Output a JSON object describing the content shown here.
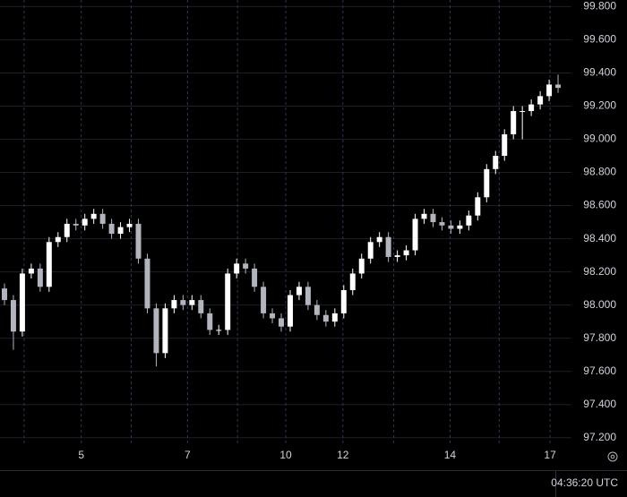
{
  "chart_data": {
    "type": "candlestick",
    "x": [
      0.5,
      1.5,
      2.5,
      3.5,
      4.5,
      5.5,
      6.5,
      7.5,
      8.5,
      9.5,
      10.5,
      11.5,
      12.5,
      13.5,
      14.5,
      15.5,
      16.5,
      17.5,
      18.5,
      19.5,
      20.5,
      21.5,
      22.5,
      23.5,
      24.5,
      25.5,
      26.5,
      27.5,
      28.5,
      29.5,
      30.5,
      31.5,
      32.5,
      33.5,
      34.5,
      35.5,
      36.5,
      37.5,
      38.5,
      39.5,
      40.5,
      41.5,
      42.5,
      43.5,
      44.5,
      45.5,
      46.5,
      47.5,
      48.5,
      49.5,
      50.5,
      51.5,
      52.5,
      53.5,
      54.5,
      55.5,
      56.5,
      57.5,
      58.5,
      59.5,
      60.5,
      61.5,
      62.5
    ],
    "open": [
      98.1,
      98.03,
      97.84,
      98.19,
      98.22,
      98.11,
      98.38,
      98.41,
      98.49,
      98.48,
      98.52,
      98.55,
      98.49,
      98.43,
      98.47,
      98.49,
      98.28,
      97.98,
      97.71,
      97.98,
      98.03,
      98.0,
      98.03,
      97.95,
      97.85,
      97.85,
      98.19,
      98.25,
      98.22,
      98.11,
      97.95,
      97.92,
      97.87,
      98.06,
      98.11,
      98.0,
      97.94,
      97.9,
      97.95,
      98.09,
      98.19,
      98.28,
      98.38,
      98.41,
      98.29,
      98.3,
      98.33,
      98.52,
      98.55,
      98.5,
      98.48,
      98.46,
      98.48,
      98.54,
      98.65,
      98.82,
      98.9,
      99.03,
      99.17,
      99.17,
      99.21,
      99.26,
      99.33
    ],
    "high": [
      98.13,
      98.06,
      98.22,
      98.25,
      98.25,
      98.41,
      98.44,
      98.52,
      98.52,
      98.55,
      98.58,
      98.58,
      98.52,
      98.5,
      98.52,
      98.52,
      98.31,
      98.01,
      98.01,
      98.06,
      98.06,
      98.06,
      98.06,
      97.98,
      97.88,
      98.22,
      98.28,
      98.28,
      98.25,
      98.14,
      97.98,
      97.95,
      98.09,
      98.14,
      98.14,
      98.03,
      97.97,
      97.98,
      98.12,
      98.22,
      98.31,
      98.41,
      98.44,
      98.44,
      98.33,
      98.36,
      98.55,
      98.58,
      98.58,
      98.53,
      98.51,
      98.51,
      98.57,
      98.68,
      98.85,
      98.93,
      99.06,
      99.2,
      99.2,
      99.24,
      99.29,
      99.36,
      99.39
    ],
    "low": [
      98.0,
      97.73,
      97.81,
      98.16,
      98.08,
      98.08,
      98.35,
      98.38,
      98.45,
      98.45,
      98.49,
      98.46,
      98.4,
      98.4,
      98.44,
      98.25,
      97.95,
      97.63,
      97.68,
      97.95,
      97.97,
      97.97,
      97.92,
      97.82,
      97.82,
      97.82,
      98.16,
      98.19,
      98.08,
      97.92,
      97.89,
      97.84,
      97.84,
      98.03,
      97.97,
      97.91,
      97.87,
      97.87,
      97.92,
      98.06,
      98.16,
      98.25,
      98.35,
      98.26,
      98.26,
      98.27,
      98.3,
      98.49,
      98.47,
      98.45,
      98.43,
      98.43,
      98.45,
      98.51,
      98.62,
      98.79,
      98.87,
      99.0,
      99.0,
      99.14,
      99.18,
      99.23,
      99.28
    ],
    "close": [
      98.03,
      97.84,
      98.19,
      98.22,
      98.11,
      98.38,
      98.41,
      98.49,
      98.48,
      98.52,
      98.55,
      98.49,
      98.43,
      98.47,
      98.49,
      98.28,
      97.98,
      97.71,
      97.98,
      98.03,
      98.0,
      98.03,
      97.95,
      97.85,
      97.85,
      98.19,
      98.25,
      98.22,
      98.11,
      97.95,
      97.92,
      97.87,
      98.06,
      98.11,
      98.0,
      97.94,
      97.9,
      97.95,
      98.09,
      98.19,
      98.28,
      98.38,
      98.41,
      98.29,
      98.3,
      98.33,
      98.52,
      98.55,
      98.5,
      98.48,
      98.46,
      98.48,
      98.54,
      98.65,
      98.82,
      98.9,
      99.03,
      99.17,
      99.17,
      99.21,
      99.26,
      99.33,
      99.31
    ],
    "up_color": "#ffffff",
    "down_color": "#b2b5be",
    "xlim": [
      0,
      64
    ],
    "xticks": [
      {
        "value": 2.7,
        "label": null
      },
      {
        "value": 9.1,
        "label": "5"
      },
      {
        "value": 14.7,
        "label": null
      },
      {
        "value": 21,
        "label": "7"
      },
      {
        "value": 26.6,
        "label": null
      },
      {
        "value": 32,
        "label": "10"
      },
      {
        "value": 38.4,
        "label": "12"
      },
      {
        "value": 44.1,
        "label": null
      },
      {
        "value": 50.4,
        "label": "14"
      },
      {
        "value": 55.9,
        "label": null
      },
      {
        "value": 61.6,
        "label": "17"
      }
    ],
    "ylim": [
      97.15,
      99.84
    ],
    "yticks": [
      {
        "value": 97.2,
        "label": "97.200"
      },
      {
        "value": 97.4,
        "label": "97.400"
      },
      {
        "value": 97.6,
        "label": "97.600"
      },
      {
        "value": 97.8,
        "label": "97.800"
      },
      {
        "value": 98.0,
        "label": "98.000"
      },
      {
        "value": 98.2,
        "label": "98.200"
      },
      {
        "value": 98.4,
        "label": "98.400"
      },
      {
        "value": 98.6,
        "label": "98.600"
      },
      {
        "value": 98.8,
        "label": "98.800"
      },
      {
        "value": 99.0,
        "label": "99.000"
      },
      {
        "value": 99.2,
        "label": "99.200"
      },
      {
        "value": 99.4,
        "label": "99.400"
      },
      {
        "value": 99.6,
        "label": "99.600"
      },
      {
        "value": 99.8,
        "label": "99.800"
      }
    ],
    "grid": true
  },
  "status": {
    "time": "04:36:20 UTC"
  }
}
